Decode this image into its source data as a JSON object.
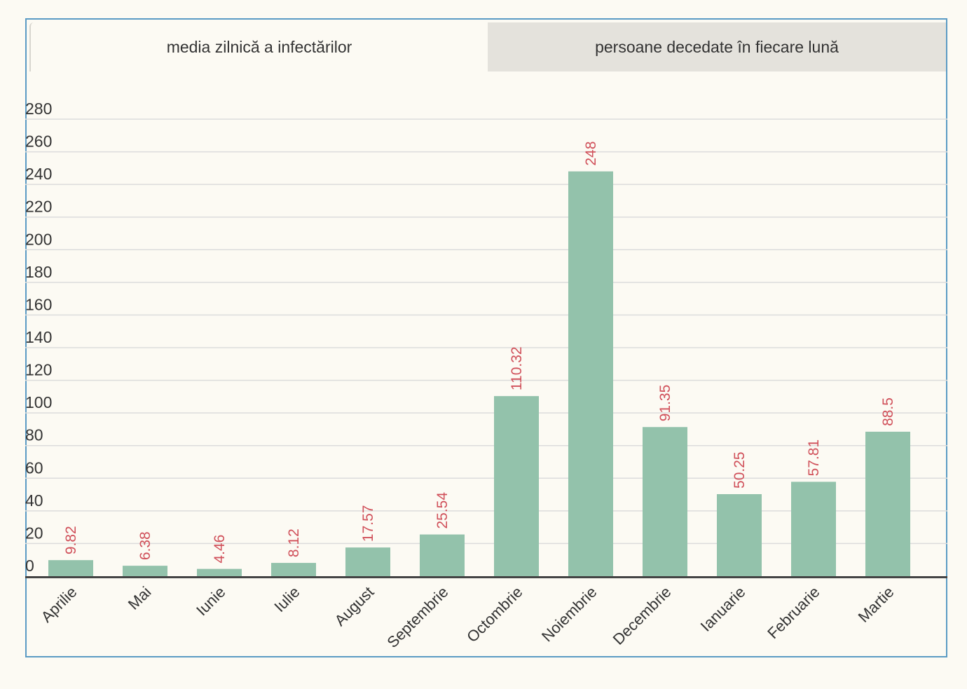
{
  "tabs": [
    {
      "label": "media zilnică a infectărilor",
      "active": true
    },
    {
      "label": "persoane decedate în fiecare lună",
      "active": false
    }
  ],
  "colors": {
    "bar": "#93c2ab",
    "data_label": "#d0505a",
    "grid": "#dcdcdc",
    "axis": "#444444",
    "border": "#5b9bc4"
  },
  "chart_data": {
    "type": "bar",
    "categories": [
      "Aprilie",
      "Mai",
      "Iunie",
      "Iulie",
      "August",
      "Septembrie",
      "Octombrie",
      "Noiembrie",
      "Decembrie",
      "Ianuarie",
      "Februarie",
      "Martie"
    ],
    "values": [
      9.82,
      6.38,
      4.46,
      8.12,
      17.57,
      25.54,
      110.32,
      248,
      91.35,
      50.25,
      57.81,
      88.5
    ],
    "data_labels": [
      "9.82",
      "6.38",
      "4.46",
      "8.12",
      "17.57",
      "25.54",
      "110.32",
      "248",
      "91.35",
      "50.25",
      "57.81",
      "88.5"
    ],
    "yticks": [
      0,
      20,
      40,
      60,
      80,
      100,
      120,
      140,
      160,
      180,
      200,
      220,
      240,
      260,
      280
    ],
    "ylim": [
      0,
      280
    ],
    "grid": true,
    "legend": "none"
  }
}
